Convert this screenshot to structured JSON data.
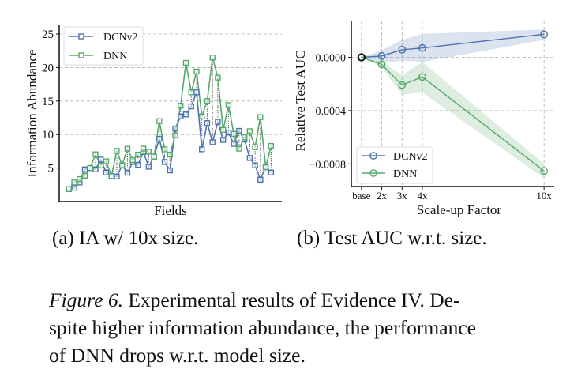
{
  "chart_data": [
    {
      "type": "line",
      "subcaption": "(a) IA w/ 10x size.",
      "xlabel": "Fields",
      "ylabel": "Information Abundance",
      "ylim": [
        0,
        26.3
      ],
      "yticks": [
        5,
        10,
        15,
        20,
        25
      ],
      "grid": "horizontal dashed",
      "legend": "top-left",
      "connectors": "dotted vertical lines between series at each field",
      "series": [
        {
          "name": "DCNv2",
          "color": "#4c72b0",
          "marker": "square",
          "values": [
            1.85,
            2.05,
            2.84,
            4.8,
            5.0,
            4.8,
            6.26,
            4.33,
            3.8,
            3.74,
            5.4,
            4.3,
            5.9,
            5.47,
            7.4,
            5.2,
            6.7,
            9.37,
            5.9,
            4.65,
            10.9,
            12.7,
            13.0,
            14.2,
            16.3,
            7.8,
            11.7,
            8.86,
            11.9,
            9.2,
            10.3,
            8.6,
            10.55,
            9.25,
            6.5,
            5.4,
            3.27,
            5.2,
            4.33
          ]
        },
        {
          "name": "DNN",
          "color": "#55a868",
          "marker": "square",
          "values": [
            1.85,
            2.84,
            3.35,
            3.86,
            5.0,
            7.05,
            5.4,
            6.0,
            3.8,
            7.56,
            5.4,
            7.87,
            6.2,
            7.0,
            7.9,
            7.44,
            6.7,
            12.0,
            7.8,
            7.0,
            9.9,
            14.3,
            20.7,
            16.3,
            19.4,
            12.7,
            15.0,
            21.5,
            18.5,
            10.7,
            14.4,
            10.1,
            7.9,
            9.6,
            10.5,
            8.1,
            12.6,
            5.1,
            8.3
          ]
        }
      ]
    },
    {
      "type": "line",
      "subcaption": "(b) Test AUC w.r.t. size.",
      "xlabel": "Scale-up Factor",
      "ylabel": "Relative Test AUC",
      "categories": [
        "base",
        "2x",
        "3x",
        "4x",
        "10x"
      ],
      "x": [
        1,
        2,
        3,
        4,
        10
      ],
      "xlim": [
        0.5,
        10.5
      ],
      "ylim": [
        -0.00097,
        0.00027
      ],
      "yticks": [
        {
          "v": 0.0,
          "label": "0.0000"
        },
        {
          "v": -0.0004,
          "label": "−0.0004"
        },
        {
          "v": -0.0008,
          "label": "−0.0008"
        }
      ],
      "grid": "both dashed",
      "legend": "bottom-left",
      "series": [
        {
          "name": "DCNv2",
          "color": "#4c72b0",
          "marker": "open-circle",
          "values": [
            0,
            1e-05,
            5.7e-05,
            7e-05,
            0.000173
          ],
          "band_upper": [
            0,
            5.3e-05,
            0.000131,
            0.000176,
            0.00021
          ],
          "band_lower": [
            0,
            -4.5e-05,
            -2.5e-05,
            -3.5e-05,
            0.000131
          ]
        },
        {
          "name": "DNN",
          "color": "#55a868",
          "marker": "open-circle",
          "values": [
            0,
            -5.3e-05,
            -0.000208,
            -0.000147,
            -0.000853
          ],
          "band_upper": [
            0,
            -3.5e-05,
            -0.000133,
            -3.5e-05,
            -0.0008
          ],
          "band_lower": [
            0,
            -7.5e-05,
            -0.00028,
            -0.000265,
            -0.000907
          ]
        }
      ]
    }
  ],
  "caption": {
    "label": "Figure 6.",
    "text": "Experimental results of Evidence IV. De-",
    "line2": "spite higher information abundance, the performance",
    "line3": "of DNN drops w.r.t. model size."
  }
}
